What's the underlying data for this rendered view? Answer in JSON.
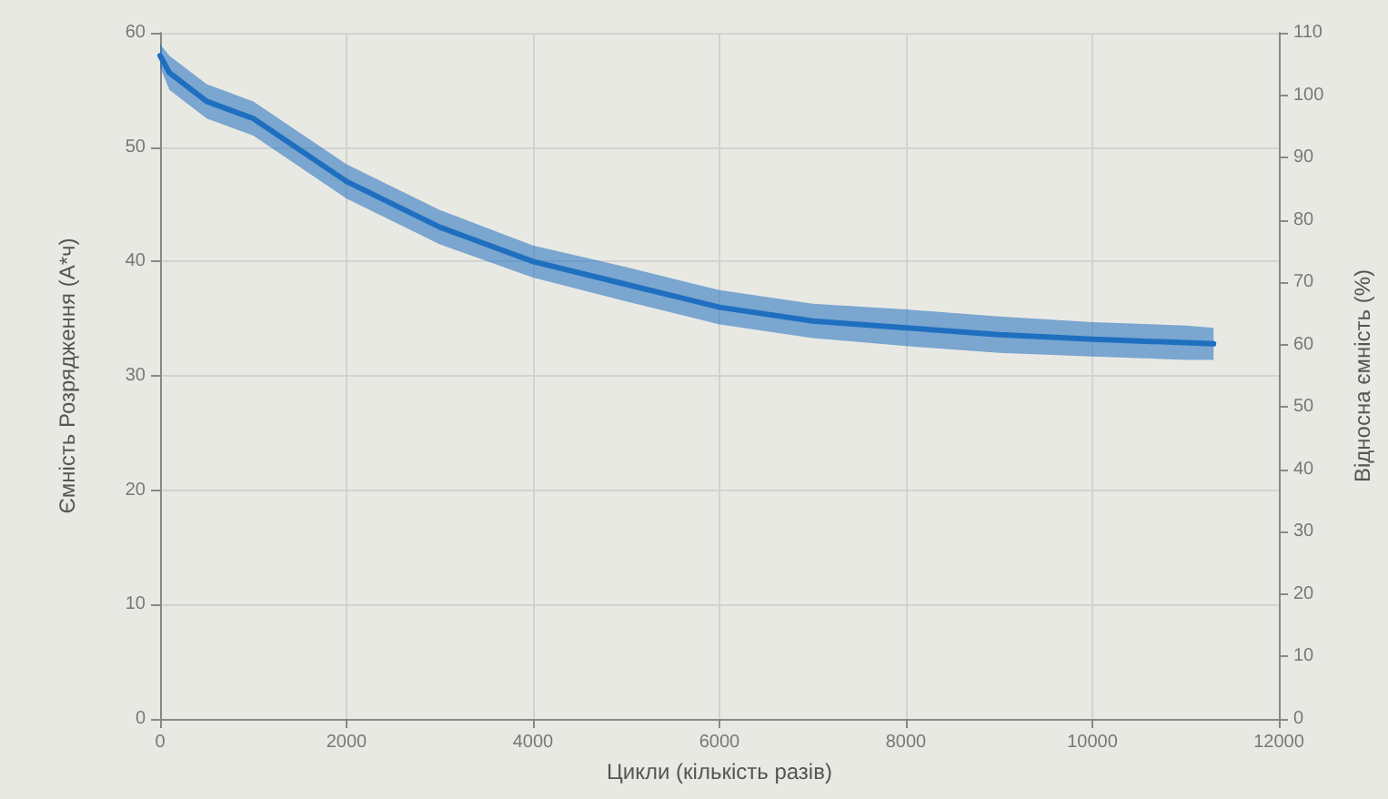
{
  "chart_data": {
    "type": "line",
    "xlabel": "Цикли (кількість разів)",
    "ylabel": "Ємність Розрядження (А*ч)",
    "y2label": "Відносна ємність (%)",
    "x": [
      0,
      100,
      500,
      1000,
      2000,
      3000,
      4000,
      5000,
      6000,
      7000,
      8000,
      9000,
      10000,
      11000,
      11300
    ],
    "series": [
      {
        "color": "#1f6fc0",
        "values": [
          58,
          56.5,
          54,
          52.5,
          47,
          43,
          40,
          38,
          36,
          34.8,
          34.2,
          33.6,
          33.2,
          32.9,
          32.8
        ],
        "lower": [
          57,
          55,
          52.5,
          51,
          45.5,
          41.5,
          38.6,
          36.5,
          34.5,
          33.3,
          32.6,
          32,
          31.7,
          31.4,
          31.4
        ],
        "upper": [
          59,
          58,
          55.5,
          54,
          48.5,
          44.5,
          41.4,
          39.5,
          37.5,
          36.3,
          35.8,
          35.2,
          34.7,
          34.4,
          34.2
        ]
      }
    ],
    "xlim": [
      0,
      12000
    ],
    "xticks": [
      0,
      2000,
      4000,
      6000,
      8000,
      10000,
      12000
    ],
    "ylim": [
      0,
      60
    ],
    "yticks": [
      0,
      10,
      20,
      30,
      40,
      50,
      60
    ],
    "y2lim": [
      0,
      110
    ],
    "y2ticks": [
      0,
      10,
      20,
      30,
      40,
      50,
      60,
      70,
      80,
      90,
      100,
      110
    ],
    "grid": true,
    "marker": "none",
    "line_style": "solid"
  }
}
